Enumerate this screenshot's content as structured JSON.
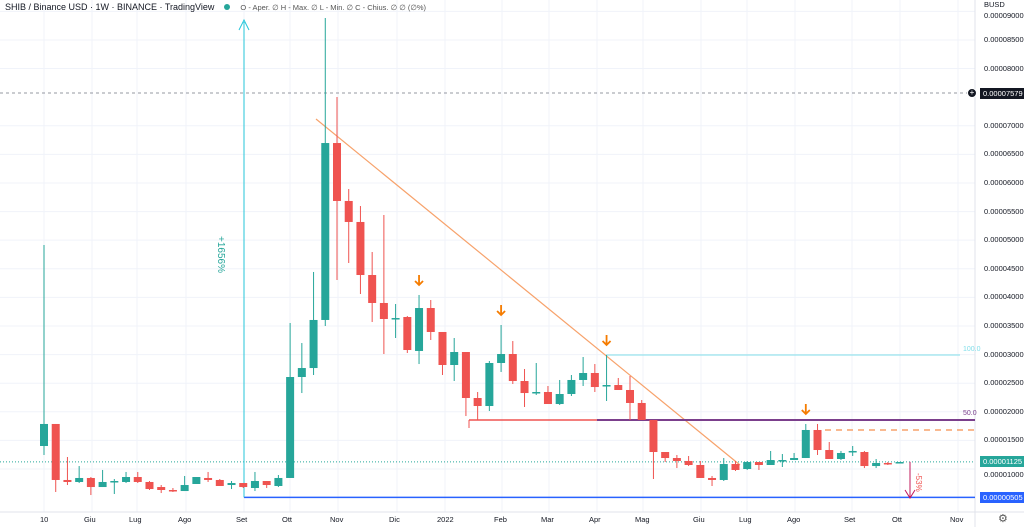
{
  "header": {
    "symbol": "SHIB / Binance USD · 1W · BINANCE · TradingView",
    "ohlc": "O - Aper. ∅  H - Max. ∅  L - Min. ∅  C - Chius. ∅  ∅ (∅%)"
  },
  "price_axis": {
    "currency": "BUSD",
    "ticks": [
      "0.00009000",
      "0.00008500",
      "0.00008000",
      "0.00007000",
      "0.00006500",
      "0.00006000",
      "0.00005500",
      "0.00005000",
      "0.00004500",
      "0.00004000",
      "0.00003500",
      "0.00003000",
      "0.00002500",
      "0.00002000",
      "0.00001500",
      "0.00001000"
    ],
    "crosshair_price": "0.00007579",
    "current_price": "0.00001125",
    "support_price": "0.00000505"
  },
  "time_axis": {
    "labels": [
      "10",
      "Giu",
      "Lug",
      "Ago",
      "Set",
      "Ott",
      "Nov",
      "Dic",
      "2022",
      "Feb",
      "Mar",
      "Apr",
      "Mag",
      "Giu",
      "Lug",
      "Ago",
      "Set",
      "Ott",
      "Nov"
    ]
  },
  "annotations": {
    "rise": "+1656%",
    "drop": "-53%",
    "fib_100": "100.0",
    "fib_50": "50.0"
  },
  "colors": {
    "up": "#26a69a",
    "down": "#ef5350",
    "trend": "#f7a26b",
    "support": "#2962ff",
    "fib": "#80deea",
    "fib50": "#7b3f8c",
    "arrow": "#f57c00"
  },
  "chart_data": {
    "type": "candlestick",
    "interval": "1W",
    "price_unit": "1e-8 BUSD",
    "candles": [
      [
        1402,
        4916,
        1245,
        1787
      ],
      [
        1787,
        1787,
        598,
        808
      ],
      [
        808,
        1210,
        720,
        773
      ],
      [
        773,
        1052,
        755,
        843
      ],
      [
        843,
        860,
        545,
        685
      ],
      [
        685,
        983,
        685,
        773
      ],
      [
        773,
        825,
        563,
        790
      ],
      [
        773,
        948,
        755,
        860
      ],
      [
        860,
        948,
        755,
        773
      ],
      [
        773,
        790,
        633,
        650
      ],
      [
        685,
        720,
        580,
        633
      ],
      [
        633,
        668,
        598,
        615
      ],
      [
        615,
        878,
        615,
        720
      ],
      [
        738,
        860,
        738,
        860
      ],
      [
        843,
        948,
        773,
        808
      ],
      [
        808,
        825,
        703,
        703
      ],
      [
        720,
        790,
        650,
        755
      ],
      [
        755,
        755,
        668,
        685
      ],
      [
        668,
        948,
        615,
        790
      ],
      [
        790,
        790,
        668,
        720
      ],
      [
        703,
        895,
        685,
        843
      ],
      [
        843,
        3552,
        843,
        2608
      ],
      [
        2608,
        3202,
        2328,
        2765
      ],
      [
        2765,
        4444,
        2643,
        3605
      ],
      [
        3605,
        8883,
        3500,
        6698
      ],
      [
        6698,
        7503,
        4304,
        5685
      ],
      [
        5685,
        5894,
        4601,
        5318
      ],
      [
        5318,
        5597,
        4059,
        4391
      ],
      [
        4391,
        4793,
        3570,
        3902
      ],
      [
        3902,
        5440,
        3010,
        3622
      ],
      [
        3622,
        3884,
        3290,
        3639
      ],
      [
        3657,
        3674,
        3028,
        3080
      ],
      [
        3063,
        4042,
        2835,
        3814
      ],
      [
        3814,
        3954,
        3255,
        3395
      ],
      [
        3395,
        3395,
        2643,
        2818
      ],
      [
        2818,
        3290,
        2538,
        3045
      ],
      [
        3045,
        3045,
        1926,
        2241
      ],
      [
        2241,
        2346,
        1857,
        2101
      ],
      [
        2101,
        2888,
        2014,
        2853
      ],
      [
        2853,
        3517,
        2696,
        3010
      ],
      [
        3010,
        3237,
        2486,
        2538
      ],
      [
        2538,
        2748,
        2084,
        2328
      ],
      [
        2328,
        2853,
        2294,
        2346
      ],
      [
        2346,
        2451,
        2136,
        2136
      ],
      [
        2136,
        2556,
        2119,
        2311
      ],
      [
        2311,
        2643,
        2276,
        2556
      ],
      [
        2556,
        2958,
        2451,
        2678
      ],
      [
        2678,
        2835,
        2346,
        2433
      ],
      [
        2451,
        2993,
        2189,
        2468
      ],
      [
        2468,
        2591,
        2381,
        2381
      ],
      [
        2381,
        2626,
        1857,
        2154
      ],
      [
        2154,
        2206,
        1857,
        1857
      ],
      [
        1857,
        1857,
        825,
        1297
      ],
      [
        1297,
        1297,
        1122,
        1192
      ],
      [
        1192,
        1245,
        1017,
        1140
      ],
      [
        1140,
        1227,
        1052,
        1070
      ],
      [
        1070,
        1140,
        843,
        843
      ],
      [
        843,
        878,
        703,
        808
      ],
      [
        808,
        1192,
        790,
        1087
      ],
      [
        1087,
        1140,
        965,
        983
      ],
      [
        1000,
        1140,
        983,
        1122
      ],
      [
        1122,
        1122,
        983,
        1070
      ],
      [
        1070,
        1315,
        1070,
        1157
      ],
      [
        1140,
        1262,
        1035,
        1157
      ],
      [
        1157,
        1280,
        1157,
        1192
      ],
      [
        1192,
        1787,
        1192,
        1682
      ],
      [
        1682,
        1787,
        1245,
        1332
      ],
      [
        1332,
        1472,
        1175,
        1175
      ],
      [
        1175,
        1315,
        1157,
        1280
      ],
      [
        1297,
        1402,
        1227,
        1315
      ],
      [
        1297,
        1315,
        1017,
        1052
      ],
      [
        1052,
        1175,
        1017,
        1105
      ],
      [
        1105,
        1122,
        1070,
        1087
      ],
      [
        1105,
        1122,
        1105,
        1122
      ]
    ],
    "markers_at_candle": [
      32,
      39,
      48,
      65
    ]
  }
}
